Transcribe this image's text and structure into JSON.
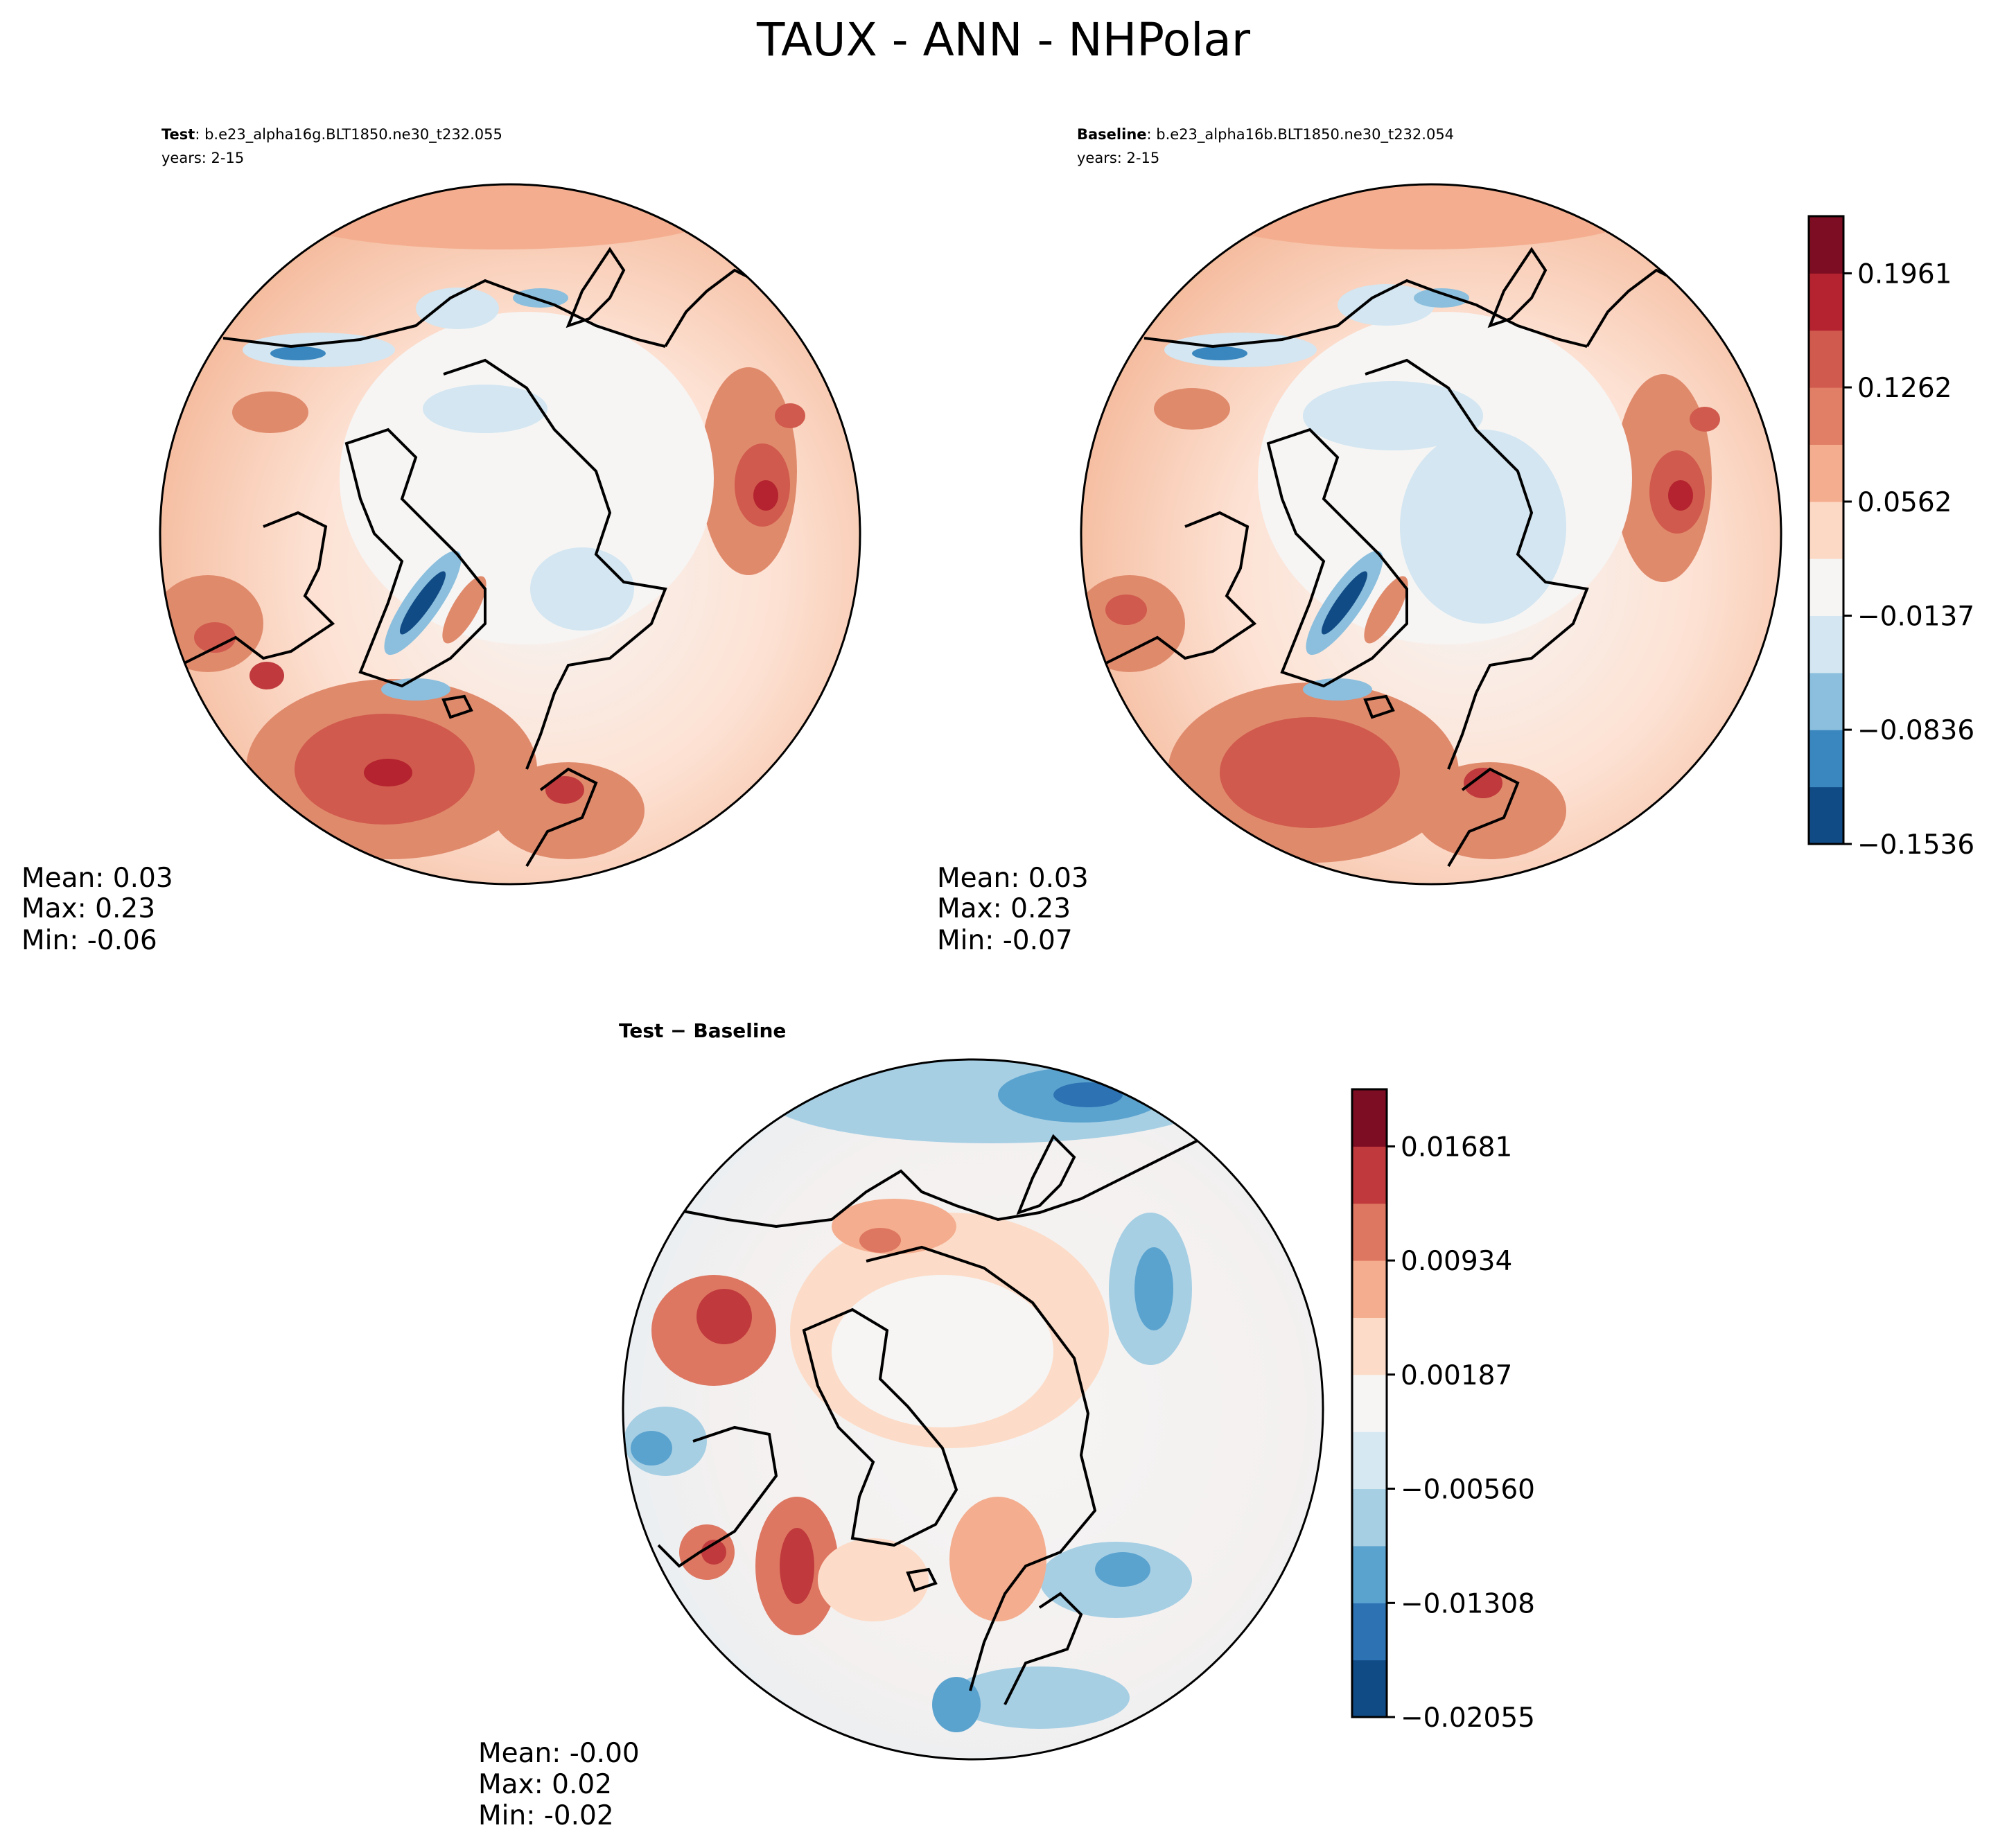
{
  "figure": {
    "title": "TAUX - ANN - NHPolar"
  },
  "panels": {
    "test": {
      "label_bold": "Test",
      "label_rest": ": b.e23_alpha16g.BLT1850.ne30_t232.055",
      "years": "years: 2-15",
      "stats": {
        "mean": "Mean:  0.03",
        "max": "Max:  0.23",
        "min": "Min: -0.06"
      }
    },
    "baseline": {
      "label_bold": "Baseline",
      "label_rest": ": b.e23_alpha16b.BLT1850.ne30_t232.054",
      "years": "years: 2-15",
      "stats": {
        "mean": "Mean:  0.03",
        "max": "Max:  0.23",
        "min": "Min: -0.07"
      }
    },
    "diff": {
      "title": "Test − Baseline",
      "stats": {
        "mean": "Mean: -0.00",
        "max": "Max:  0.02",
        "min": "Min: -0.02"
      }
    }
  },
  "chart_data": [
    {
      "type": "heatmap",
      "title": "Test : b.e23_alpha16g.BLT1850.ne30_t232.055",
      "projection": "north-polar-stereographic",
      "variable": "TAUX",
      "season": "ANN",
      "years": "2-15",
      "mean": 0.03,
      "max": 0.23,
      "min": -0.06
    },
    {
      "type": "heatmap",
      "title": "Baseline : b.e23_alpha16b.BLT1850.ne30_t232.054",
      "projection": "north-polar-stereographic",
      "variable": "TAUX",
      "season": "ANN",
      "years": "2-15",
      "mean": 0.03,
      "max": 0.23,
      "min": -0.07,
      "colorbar": {
        "range": [
          -0.1536,
          0.2311
        ],
        "tick_labels": [
          "−0.1536",
          "−0.0836",
          "−0.0137",
          "0.0562",
          "0.1262",
          "0.1961"
        ],
        "tick_values": [
          -0.1536,
          -0.0836,
          -0.0137,
          0.0562,
          0.1262,
          0.1961
        ],
        "colors": [
          "#114b85",
          "#3a87bf",
          "#8bbfdd",
          "#d3e6f1",
          "#f6f5f4",
          "#fcd9c5",
          "#f4ae8f",
          "#e07f66",
          "#d05a4d",
          "#b4232f",
          "#7d0d22"
        ]
      }
    },
    {
      "type": "heatmap",
      "title": "Test − Baseline",
      "projection": "north-polar-stereographic",
      "variable": "TAUX",
      "mean": -0.0,
      "max": 0.02,
      "min": -0.02,
      "colorbar": {
        "range": [
          -0.02055,
          0.02055
        ],
        "tick_labels": [
          "−0.02055",
          "−0.01308",
          "−0.00560",
          "0.00187",
          "0.00934",
          "0.01681"
        ],
        "tick_values": [
          -0.02055,
          -0.01308,
          -0.0056,
          0.00187,
          0.00934,
          0.01681
        ],
        "colors": [
          "#114b85",
          "#2d73b3",
          "#5ba3cf",
          "#a6cfe4",
          "#d6e8f2",
          "#f6f5f4",
          "#fcdcc8",
          "#f4ad8e",
          "#de7761",
          "#c03a3d",
          "#7d0d22"
        ]
      }
    }
  ]
}
